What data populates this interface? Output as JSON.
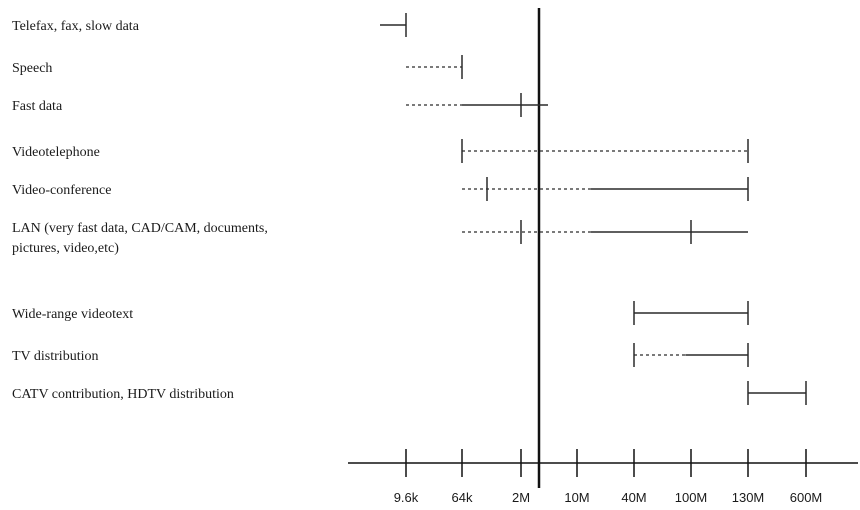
{
  "chart_data": {
    "type": "range",
    "title": "",
    "xlabel": "",
    "ylabel": "",
    "x_scale": "logarithmic",
    "x_tick_labels": [
      "9.6k",
      "64k",
      "2M",
      "10M",
      "40M",
      "100M",
      "130M",
      "600M"
    ],
    "reference_line_at": "2M",
    "grid": false,
    "services": [
      {
        "label_lines": [
          "Telefax, fax, slow data"
        ],
        "range": [
          {
            "from": "",
            "to": "9.6k",
            "style": "solid"
          }
        ],
        "markers": [
          "9.6k"
        ]
      },
      {
        "label_lines": [
          "Speech"
        ],
        "range": [
          {
            "from": "9.6k",
            "to": "64k",
            "style": "dotted"
          }
        ],
        "markers": [
          "64k"
        ]
      },
      {
        "label_lines": [
          "Fast data"
        ],
        "range": [
          {
            "from": "9.6k",
            "to": "64k",
            "style": "dotted"
          },
          {
            "from": "64k",
            "to": "2M",
            "style": "solid"
          }
        ],
        "markers": [
          "2M"
        ]
      },
      {
        "label_lines": [
          "Videotelephone"
        ],
        "range": [
          {
            "from": "64k",
            "to": "130M",
            "style": "dotted"
          }
        ],
        "markers": [
          "64k",
          "130M"
        ]
      },
      {
        "label_lines": [
          "Video-conference"
        ],
        "range": [
          {
            "from": "64k",
            "to": "130M",
            "style": "dotted-then-solid"
          }
        ],
        "markers": [
          "130M"
        ]
      },
      {
        "label_lines": [
          "LAN (very fast data, CAD/CAM, documents,",
          "pictures, video,etc)"
        ],
        "range": [
          {
            "from": "64k",
            "to": "130M",
            "style": "dotted-then-solid"
          }
        ],
        "markers": [
          "2M",
          "100M"
        ]
      },
      {
        "label_lines": [
          "Wide-range videotext"
        ],
        "range": [
          {
            "from": "40M",
            "to": "130M",
            "style": "solid"
          }
        ],
        "markers": [
          "40M",
          "130M"
        ]
      },
      {
        "label_lines": [
          "TV distribution"
        ],
        "range": [
          {
            "from": "40M",
            "to": "130M",
            "style": "dotted-then-solid"
          }
        ],
        "markers": [
          "40M",
          "130M"
        ]
      },
      {
        "label_lines": [
          "CATV contribution, HDTV distribution"
        ],
        "range": [
          {
            "from": "130M",
            "to": "600M",
            "style": "solid"
          }
        ],
        "markers": [
          "130M",
          "600M"
        ]
      }
    ]
  }
}
